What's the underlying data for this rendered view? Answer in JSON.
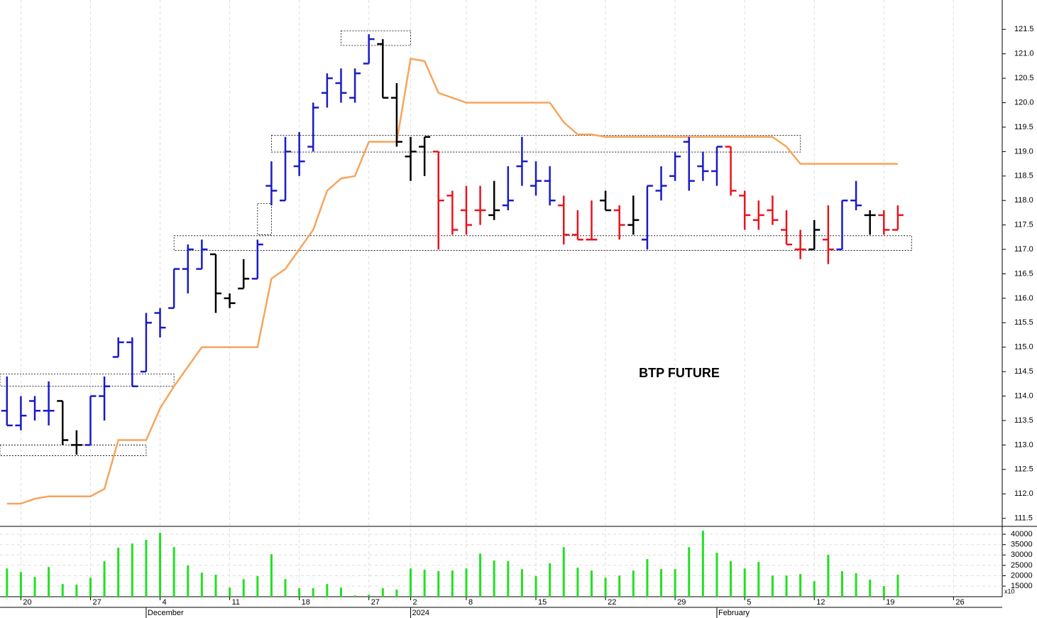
{
  "chart_data": [
    {
      "type": "ohlc",
      "title": "BTP FUTURE",
      "open": [
        113.7,
        113.4,
        113.9,
        113.7,
        113.9,
        113.0,
        113.0,
        114.0,
        114.8,
        115.1,
        114.5,
        115.7,
        115.8,
        116.6,
        116.6,
        116.9,
        116.0,
        116.2,
        116.4,
        118.3,
        118.0,
        118.7,
        119.1,
        120.2,
        120.4,
        120.1,
        120.8,
        121.2,
        120.1,
        118.9,
        119.1,
        119.0,
        118.1,
        117.8,
        117.8,
        117.7,
        117.9,
        118.7,
        118.3,
        118.4,
        117.9,
        117.3,
        117.2,
        118.0,
        117.8,
        117.5,
        117.2,
        118.2,
        118.5,
        119.2,
        118.7,
        118.6,
        119.1,
        118.1,
        117.6,
        117.8,
        117.4,
        117.0,
        117.0,
        117.2,
        117.0,
        118.0,
        117.7,
        117.7,
        117.4
      ],
      "high": [
        114.4,
        114.0,
        114.0,
        114.3,
        113.9,
        113.3,
        114.0,
        114.4,
        115.2,
        115.2,
        115.7,
        115.8,
        116.6,
        117.1,
        117.2,
        116.9,
        116.1,
        116.8,
        117.2,
        118.8,
        119.3,
        119.4,
        120.0,
        120.6,
        120.7,
        120.7,
        121.4,
        121.3,
        120.4,
        119.3,
        119.3,
        119.0,
        118.2,
        118.3,
        118.3,
        118.4,
        118.7,
        119.3,
        118.8,
        118.7,
        118.1,
        117.8,
        118.0,
        118.2,
        117.9,
        118.1,
        118.3,
        118.7,
        119.0,
        119.3,
        119.0,
        119.1,
        119.1,
        118.2,
        118.0,
        118.1,
        117.8,
        117.4,
        117.6,
        117.9,
        118.0,
        118.4,
        117.8,
        117.8,
        117.9
      ],
      "low": [
        113.4,
        113.3,
        113.5,
        113.4,
        113.0,
        112.8,
        113.0,
        113.5,
        114.8,
        114.2,
        114.5,
        115.2,
        115.8,
        116.1,
        116.6,
        115.7,
        115.8,
        116.2,
        116.4,
        117.9,
        118.0,
        118.5,
        119.0,
        119.9,
        120.0,
        120.0,
        120.8,
        120.1,
        119.1,
        118.4,
        118.5,
        117.0,
        117.3,
        117.3,
        117.5,
        117.6,
        117.8,
        118.3,
        118.1,
        117.9,
        117.1,
        117.2,
        117.2,
        117.8,
        117.2,
        117.3,
        117.0,
        118.0,
        118.4,
        118.2,
        118.4,
        118.3,
        118.1,
        117.4,
        117.4,
        117.5,
        117.1,
        116.8,
        117.0,
        116.7,
        117.0,
        117.8,
        117.3,
        117.3,
        117.4
      ],
      "close": [
        113.4,
        113.6,
        113.7,
        113.7,
        113.1,
        113.0,
        114.0,
        114.2,
        115.1,
        114.2,
        115.5,
        115.4,
        116.6,
        117.0,
        117.0,
        116.1,
        115.9,
        116.4,
        117.1,
        118.2,
        119.0,
        118.8,
        119.9,
        120.5,
        120.2,
        120.6,
        121.3,
        120.1,
        119.2,
        119.0,
        119.3,
        118.0,
        117.4,
        117.5,
        117.8,
        117.8,
        118.0,
        118.8,
        118.4,
        118.0,
        117.3,
        117.2,
        117.2,
        117.8,
        117.5,
        117.6,
        118.3,
        118.3,
        118.9,
        118.4,
        118.6,
        119.1,
        118.2,
        117.7,
        117.7,
        117.6,
        117.1,
        117.0,
        117.4,
        117.0,
        118.0,
        117.9,
        117.7,
        117.4,
        117.7
      ],
      "colors": [
        "#1a1ac8",
        "#1a1ac8",
        "#1a1ac8",
        "#1a1ac8",
        "#000000",
        "#000000",
        "#1a1ac8",
        "#1a1ac8",
        "#1a1ac8",
        "#1a1ac8",
        "#1a1ac8",
        "#1a1ac8",
        "#1a1ac8",
        "#1a1ac8",
        "#1a1ac8",
        "#000000",
        "#000000",
        "#000000",
        "#1a1ac8",
        "#1a1ac8",
        "#1a1ac8",
        "#1a1ac8",
        "#1a1ac8",
        "#1a1ac8",
        "#1a1ac8",
        "#1a1ac8",
        "#1a1ac8",
        "#000000",
        "#000000",
        "#000000",
        "#000000",
        "#e8141e",
        "#e8141e",
        "#e8141e",
        "#e8141e",
        "#000000",
        "#1a1ac8",
        "#1a1ac8",
        "#1a1ac8",
        "#1a1ac8",
        "#e8141e",
        "#e8141e",
        "#e8141e",
        "#000000",
        "#e8141e",
        "#000000",
        "#1a1ac8",
        "#1a1ac8",
        "#1a1ac8",
        "#1a1ac8",
        "#1a1ac8",
        "#1a1ac8",
        "#e8141e",
        "#e8141e",
        "#e8141e",
        "#e8141e",
        "#e8141e",
        "#e8141e",
        "#000000",
        "#e8141e",
        "#1a1ac8",
        "#1a1ac8",
        "#000000",
        "#e8141e",
        "#e8141e"
      ],
      "overlay": {
        "color": "#f8a45c",
        "values": [
          111.8,
          111.8,
          111.9,
          111.95,
          111.95,
          111.95,
          111.95,
          112.1,
          113.1,
          113.1,
          113.1,
          113.75,
          114.2,
          114.6,
          115.0,
          115.0,
          115.0,
          115.0,
          115.0,
          116.4,
          116.6,
          117.0,
          117.4,
          118.2,
          118.45,
          118.5,
          119.2,
          119.2,
          119.2,
          120.9,
          120.85,
          120.2,
          120.1,
          120.0,
          120.0,
          120.0,
          120.0,
          120.0,
          120.0,
          120.0,
          119.6,
          119.35,
          119.35,
          119.3,
          119.3,
          119.3,
          119.3,
          119.3,
          119.3,
          119.3,
          119.3,
          119.3,
          119.3,
          119.3,
          119.3,
          119.3,
          119.1,
          118.75,
          118.75,
          118.75,
          118.75,
          118.75,
          118.75,
          118.75,
          118.75
        ]
      },
      "zones": [
        {
          "from": -0.5,
          "to": 12,
          "low": 114.2,
          "high": 114.45
        },
        {
          "from": -0.5,
          "to": 10,
          "low": 112.78,
          "high": 113.0
        },
        {
          "from": 12,
          "to": 65,
          "low": 116.98,
          "high": 117.28
        },
        {
          "from": 24,
          "to": 29,
          "low": 121.17,
          "high": 121.47
        },
        {
          "from": 19,
          "to": 57,
          "low": 118.99,
          "high": 119.33
        },
        {
          "from": 18,
          "to": 19,
          "low": 117.3,
          "high": 117.94
        }
      ],
      "xlim": [
        -0.5,
        71.5
      ],
      "xticks": [
        {
          "value": 1,
          "label": "20"
        },
        {
          "value": 6,
          "label": "27"
        },
        {
          "value": 11,
          "label": "4"
        },
        {
          "value": 16,
          "label": "11"
        },
        {
          "value": 21,
          "label": "18"
        },
        {
          "value": 26,
          "label": "27"
        },
        {
          "value": 29,
          "label": "2"
        },
        {
          "value": 33,
          "label": "8"
        },
        {
          "value": 38,
          "label": "15"
        },
        {
          "value": 43,
          "label": "22"
        },
        {
          "value": 48,
          "label": "29"
        },
        {
          "value": 53,
          "label": "5"
        },
        {
          "value": 58,
          "label": "12"
        },
        {
          "value": 63,
          "label": "19"
        },
        {
          "value": 68,
          "label": "26"
        }
      ],
      "xseparators": [
        {
          "value": 10,
          "label": "December"
        },
        {
          "value": 29,
          "label": "2024"
        },
        {
          "value": 51,
          "label": "February"
        }
      ],
      "ylim": [
        111.35,
        122.1
      ],
      "yticks": [
        111.5,
        {
          "value": 112,
          "label": "112.0"
        },
        112.5,
        {
          "value": 113,
          "label": "113.0"
        },
        113.5,
        {
          "value": 114,
          "label": "114.0"
        },
        114.5,
        {
          "value": 115,
          "label": "115.0"
        },
        115.5,
        {
          "value": 116,
          "label": "116.0"
        },
        116.5,
        {
          "value": 117,
          "label": "117.0"
        },
        117.5,
        {
          "value": 118,
          "label": "118.0"
        },
        118.5,
        {
          "value": 119,
          "label": "119.0"
        },
        119.5,
        {
          "value": 120,
          "label": "120.0"
        },
        120.5,
        {
          "value": 121,
          "label": "121.0"
        },
        121.5
      ]
    },
    {
      "type": "bar",
      "color": "#22e022",
      "multiplier_label": "x10",
      "values": [
        23500,
        21800,
        19400,
        24200,
        16000,
        15700,
        19100,
        27000,
        33500,
        35500,
        37300,
        40700,
        33800,
        25000,
        21500,
        20500,
        14300,
        18400,
        19800,
        30400,
        18400,
        14000,
        14000,
        16000,
        14300,
        10500,
        10900,
        14000,
        13300,
        23500,
        22900,
        22200,
        22500,
        23500,
        30700,
        27300,
        27000,
        23200,
        19800,
        26000,
        33800,
        23900,
        22500,
        19100,
        20100,
        22500,
        28000,
        23200,
        23200,
        33800,
        41700,
        31100,
        27000,
        23500,
        26600,
        20100,
        20100,
        20800,
        17400,
        30100,
        22200,
        21200,
        18100,
        15000,
        20500
      ],
      "ylim": [
        9900,
        43800
      ],
      "yticks": [
        15000,
        20000,
        25000,
        30000,
        35000,
        40000
      ]
    }
  ]
}
